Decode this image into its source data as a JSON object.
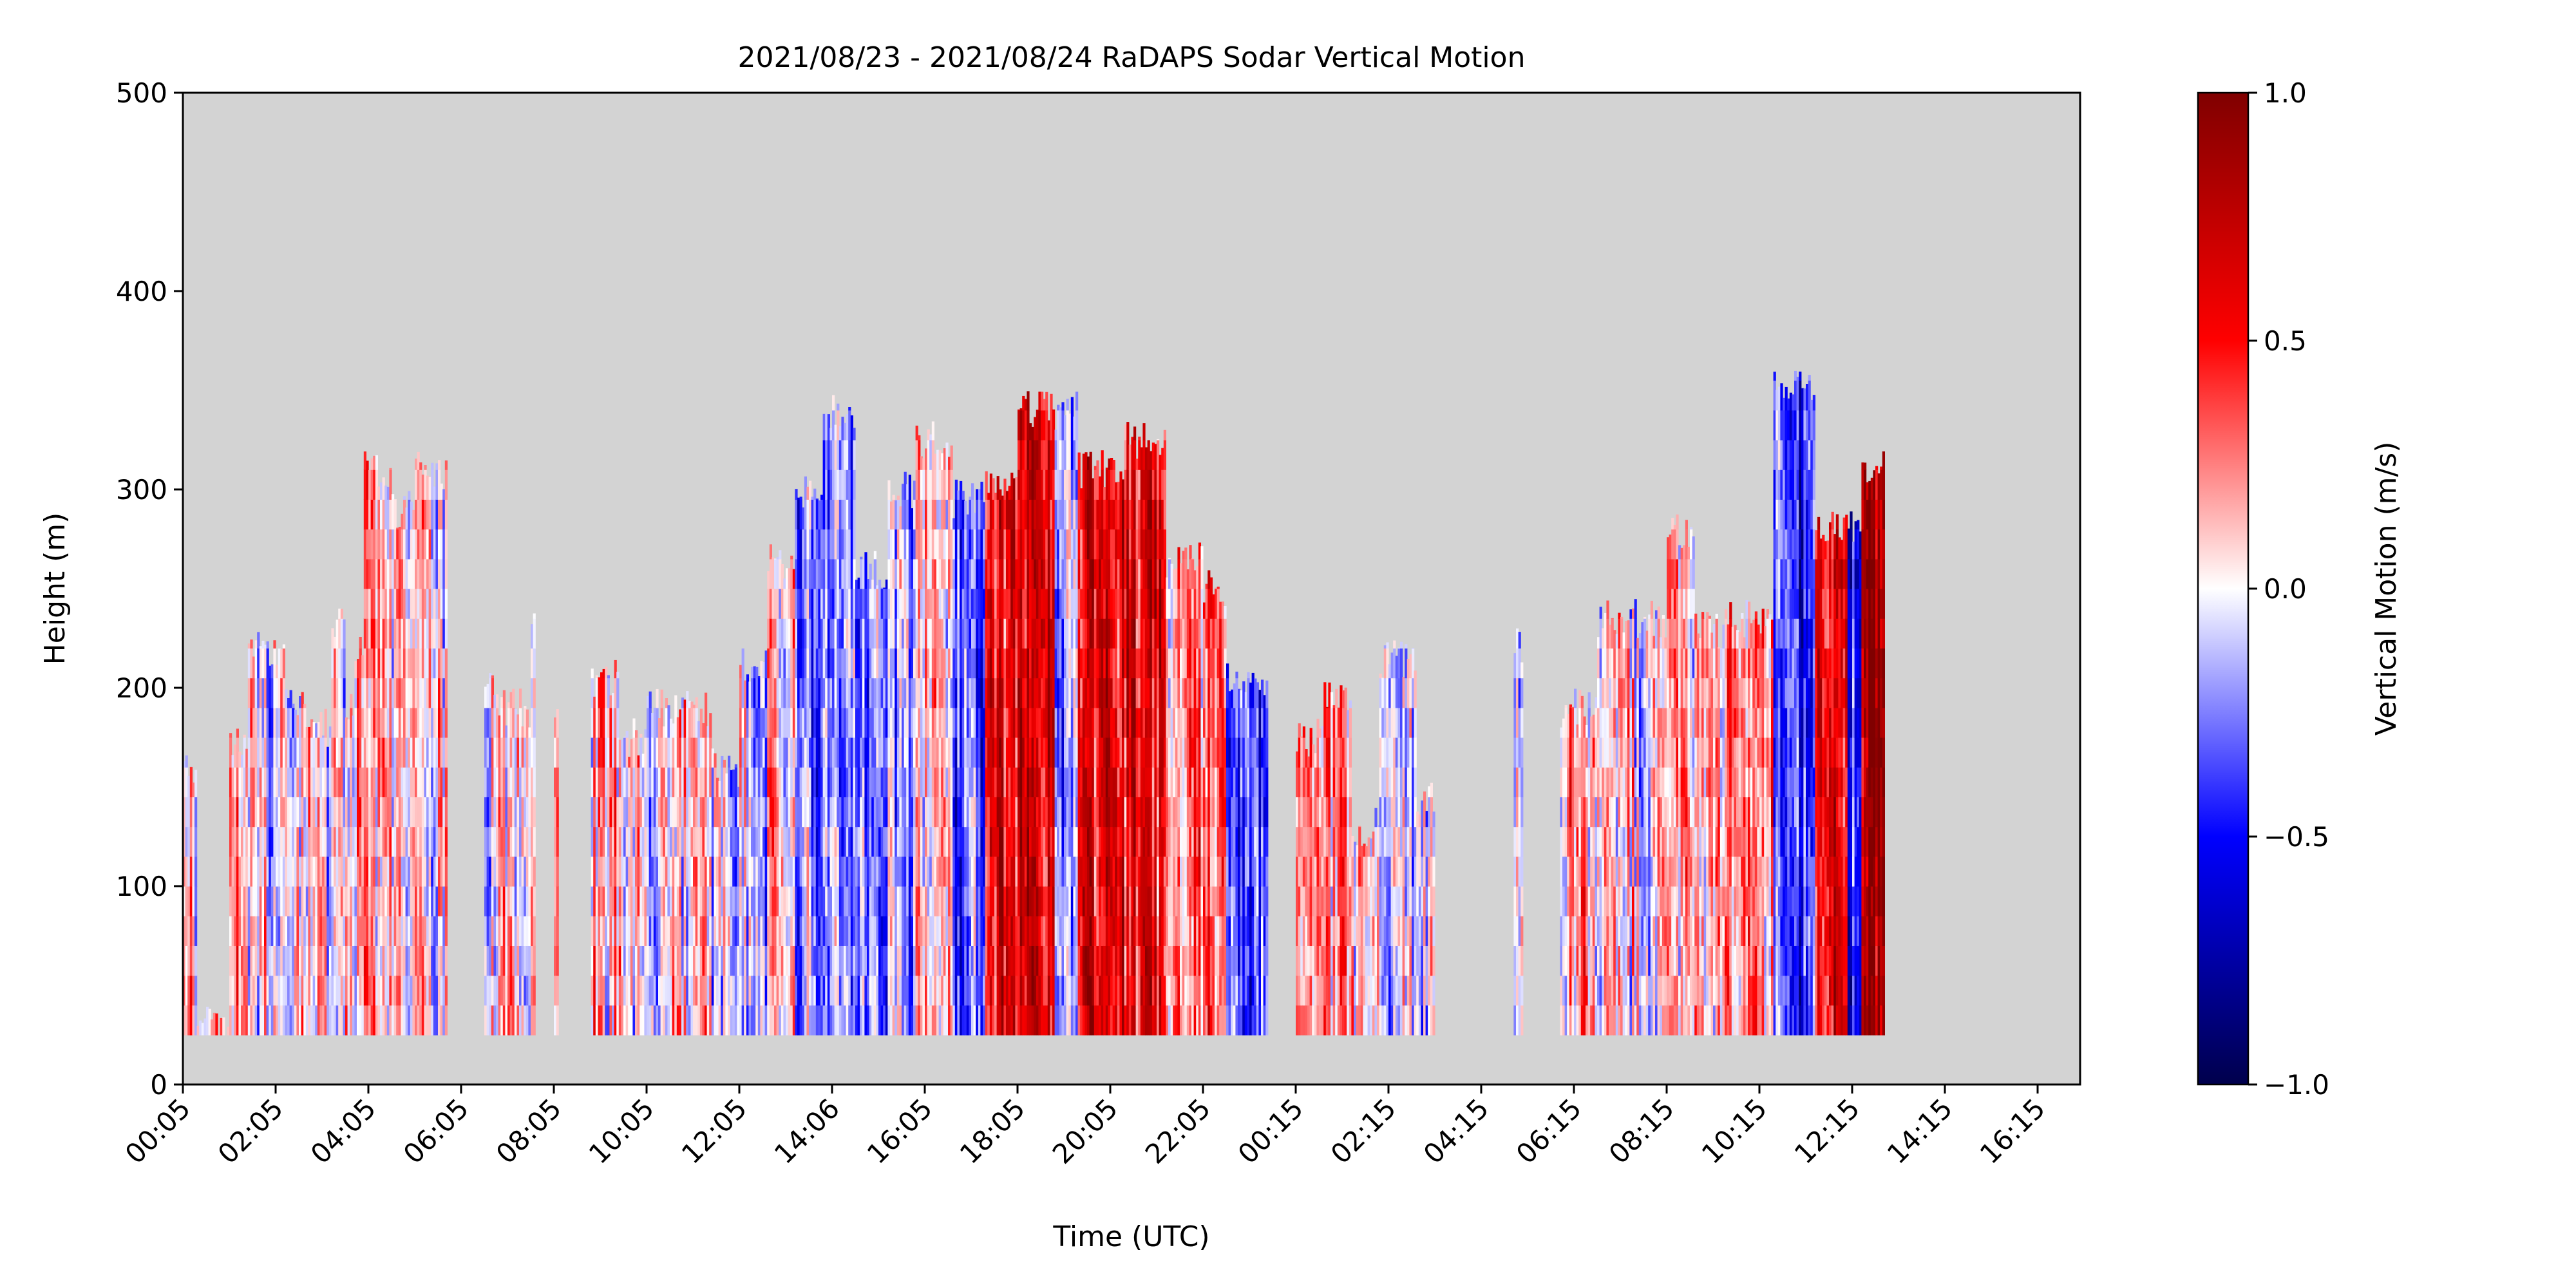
{
  "chart_data": {
    "type": "heatmap",
    "title": "2021/08/23 - 2021/08/24 RaDAPS Sodar Vertical Motion",
    "xlabel": "Time (UTC)",
    "ylabel": "Height (m)",
    "ylim": [
      0,
      500
    ],
    "yticks": [
      0,
      100,
      200,
      300,
      400,
      500
    ],
    "xticks": [
      "00:05",
      "02:05",
      "04:05",
      "06:05",
      "08:05",
      "10:05",
      "12:05",
      "14:06",
      "16:05",
      "18:05",
      "20:05",
      "22:05",
      "00:15",
      "02:15",
      "04:15",
      "06:15",
      "08:15",
      "10:15",
      "12:15",
      "14:15",
      "16:15"
    ],
    "background": "#d3d3d3",
    "colormap": "seismic",
    "colorbar": {
      "label": "Vertical Motion (m/s)",
      "range": [
        -1.0,
        1.0
      ],
      "ticks": [
        "1.0",
        "0.5",
        "0.0",
        "−0.5",
        "−1.0"
      ]
    },
    "min_height": 25,
    "profiles": [
      {
        "from": 0.0,
        "to": 0.3,
        "top": 160,
        "bias": 0.15
      },
      {
        "from": 0.3,
        "to": 1.0,
        "top": 30,
        "bias": 0.1
      },
      {
        "from": 1.0,
        "to": 1.4,
        "top": 170,
        "bias": 0.3
      },
      {
        "from": 1.4,
        "to": 2.2,
        "top": 220,
        "bias": -0.05
      },
      {
        "from": 2.2,
        "to": 2.8,
        "top": 190,
        "bias": 0.05
      },
      {
        "from": 2.8,
        "to": 3.2,
        "top": 180,
        "bias": 0.0
      },
      {
        "from": 3.2,
        "to": 3.5,
        "top": 235,
        "bias": -0.05
      },
      {
        "from": 3.5,
        "to": 3.7,
        "top": 190,
        "bias": 0.15
      },
      {
        "from": 3.7,
        "to": 3.9,
        "top": 220,
        "bias": 0.1
      },
      {
        "from": 3.9,
        "to": 4.5,
        "top": 310,
        "bias": 0.25
      },
      {
        "from": 4.5,
        "to": 5.0,
        "top": 290,
        "bias": 0.1
      },
      {
        "from": 5.0,
        "to": 5.7,
        "top": 310,
        "bias": 0.02
      },
      {
        "from": 6.5,
        "to": 6.8,
        "top": 205,
        "bias": 0.05
      },
      {
        "from": 6.8,
        "to": 7.5,
        "top": 190,
        "bias": 0.05
      },
      {
        "from": 7.5,
        "to": 7.6,
        "top": 235,
        "bias": 0.0
      },
      {
        "from": 8.0,
        "to": 8.1,
        "top": 190,
        "bias": 0.1
      },
      {
        "from": 8.8,
        "to": 9.4,
        "top": 205,
        "bias": 0.15
      },
      {
        "from": 9.4,
        "to": 10.0,
        "top": 175,
        "bias": 0.05
      },
      {
        "from": 10.0,
        "to": 10.5,
        "top": 190,
        "bias": -0.1
      },
      {
        "from": 10.5,
        "to": 11.4,
        "top": 190,
        "bias": 0.05
      },
      {
        "from": 11.4,
        "to": 12.0,
        "top": 160,
        "bias": -0.1
      },
      {
        "from": 12.0,
        "to": 12.6,
        "top": 210,
        "bias": -0.1
      },
      {
        "from": 12.6,
        "to": 13.2,
        "top": 265,
        "bias": 0.05
      },
      {
        "from": 13.2,
        "to": 13.8,
        "top": 300,
        "bias": -0.2
      },
      {
        "from": 13.8,
        "to": 14.5,
        "top": 340,
        "bias": -0.25
      },
      {
        "from": 14.5,
        "to": 15.2,
        "top": 260,
        "bias": -0.2
      },
      {
        "from": 15.2,
        "to": 15.8,
        "top": 300,
        "bias": -0.2
      },
      {
        "from": 15.8,
        "to": 16.6,
        "top": 325,
        "bias": 0.05
      },
      {
        "from": 16.6,
        "to": 17.3,
        "top": 295,
        "bias": -0.3
      },
      {
        "from": 17.3,
        "to": 18.0,
        "top": 300,
        "bias": 0.6
      },
      {
        "from": 18.0,
        "to": 18.8,
        "top": 340,
        "bias": 0.7
      },
      {
        "from": 18.8,
        "to": 19.3,
        "top": 340,
        "bias": -0.2
      },
      {
        "from": 19.3,
        "to": 20.3,
        "top": 310,
        "bias": 0.6
      },
      {
        "from": 20.3,
        "to": 21.2,
        "top": 325,
        "bias": 0.55
      },
      {
        "from": 21.2,
        "to": 22.0,
        "top": 265,
        "bias": 0.25
      },
      {
        "from": 22.0,
        "to": 22.5,
        "top": 250,
        "bias": 0.35
      },
      {
        "from": 22.5,
        "to": 23.4,
        "top": 205,
        "bias": -0.4
      },
      {
        "from": 24.0,
        "to": 24.6,
        "top": 175,
        "bias": 0.25
      },
      {
        "from": 24.6,
        "to": 25.2,
        "top": 195,
        "bias": 0.2
      },
      {
        "from": 25.2,
        "to": 25.8,
        "top": 130,
        "bias": 0.1
      },
      {
        "from": 25.8,
        "to": 26.6,
        "top": 215,
        "bias": -0.1
      },
      {
        "from": 26.6,
        "to": 27.0,
        "top": 145,
        "bias": -0.1
      },
      {
        "from": 28.7,
        "to": 28.9,
        "top": 220,
        "bias": -0.05
      },
      {
        "from": 29.7,
        "to": 30.5,
        "top": 190,
        "bias": 0.2
      },
      {
        "from": 30.5,
        "to": 31.3,
        "top": 235,
        "bias": 0.05
      },
      {
        "from": 31.3,
        "to": 32.0,
        "top": 235,
        "bias": -0.05
      },
      {
        "from": 32.0,
        "to": 32.6,
        "top": 280,
        "bias": 0.15
      },
      {
        "from": 32.6,
        "to": 33.3,
        "top": 230,
        "bias": 0.05
      },
      {
        "from": 33.3,
        "to": 34.3,
        "top": 235,
        "bias": 0.2
      },
      {
        "from": 34.3,
        "to": 35.2,
        "top": 355,
        "bias": -0.45
      },
      {
        "from": 35.2,
        "to": 35.9,
        "top": 280,
        "bias": 0.55
      },
      {
        "from": 35.9,
        "to": 36.2,
        "top": 280,
        "bias": -0.5
      },
      {
        "from": 36.2,
        "to": 36.7,
        "top": 310,
        "bias": 0.9
      }
    ]
  }
}
